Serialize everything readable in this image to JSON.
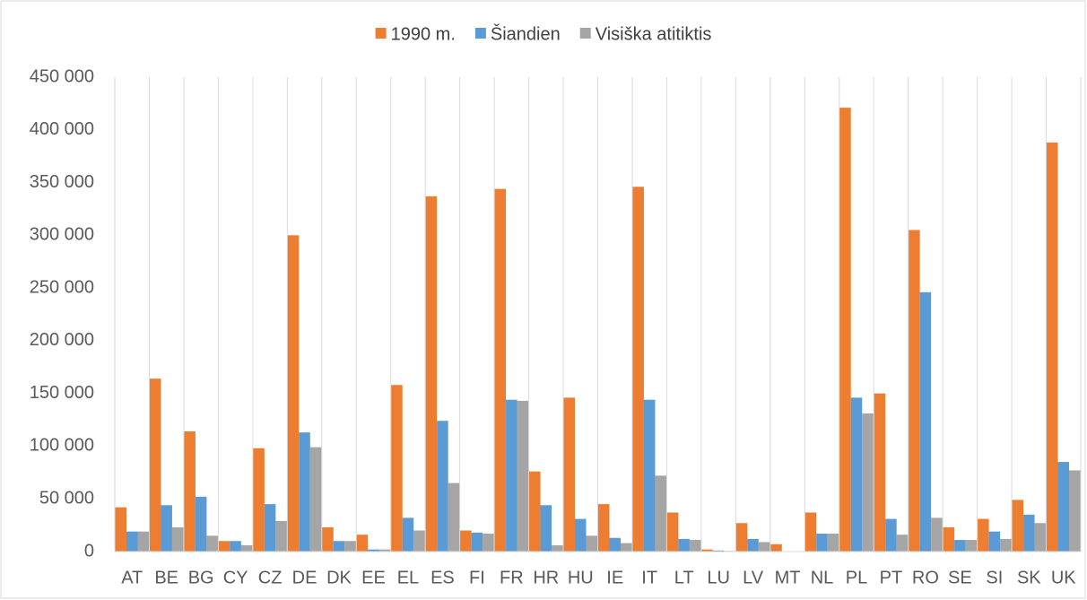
{
  "chart_data": {
    "type": "bar",
    "categories": [
      "AT",
      "BE",
      "BG",
      "CY",
      "CZ",
      "DE",
      "DK",
      "EE",
      "EL",
      "ES",
      "FI",
      "FR",
      "HR",
      "HU",
      "IE",
      "IT",
      "LT",
      "LU",
      "LV",
      "MT",
      "NL",
      "PL",
      "PT",
      "RO",
      "SE",
      "SI",
      "SK",
      "UK"
    ],
    "series": [
      {
        "name": "1990 m.",
        "color": "#ed7d31",
        "values": [
          42000,
          164000,
          114000,
          10000,
          98000,
          300000,
          23000,
          16000,
          158000,
          337000,
          20000,
          344000,
          76000,
          146000,
          45000,
          346000,
          37000,
          2000,
          27000,
          7000,
          37000,
          421000,
          150000,
          305000,
          23000,
          31000,
          49000,
          388000
        ]
      },
      {
        "name": "Šiandien",
        "color": "#5b9bd5",
        "values": [
          19000,
          44000,
          52000,
          10000,
          45000,
          113000,
          10000,
          2000,
          32000,
          124000,
          18000,
          144000,
          44000,
          31000,
          13000,
          144000,
          12000,
          1000,
          12000,
          300,
          17000,
          146000,
          31000,
          246000,
          11000,
          19000,
          35000,
          85000
        ]
      },
      {
        "name": "Visiška atitiktis",
        "color": "#a5a5a5",
        "values": [
          19000,
          23000,
          15000,
          6000,
          29000,
          99000,
          10000,
          2000,
          20000,
          65000,
          17000,
          143000,
          6000,
          15000,
          8000,
          72000,
          11000,
          600,
          9000,
          300,
          17000,
          131000,
          16000,
          32000,
          11000,
          12000,
          27000,
          77000
        ]
      }
    ],
    "ylim": [
      0,
      450000
    ],
    "yticks": [
      0,
      {
        "value": 50000,
        "label": "50 000"
      },
      {
        "value": 100000,
        "label": "100 000"
      },
      {
        "value": 150000,
        "label": "150 000"
      },
      {
        "value": 200000,
        "label": "200 000"
      },
      {
        "value": 250000,
        "label": "250 000"
      },
      {
        "value": 300000,
        "label": "300 000"
      },
      {
        "value": 350000,
        "label": "350 000"
      },
      {
        "value": 400000,
        "label": "400 000"
      },
      {
        "value": 450000,
        "label": "450 000"
      }
    ],
    "category_gridlines": true,
    "legend": "top"
  }
}
